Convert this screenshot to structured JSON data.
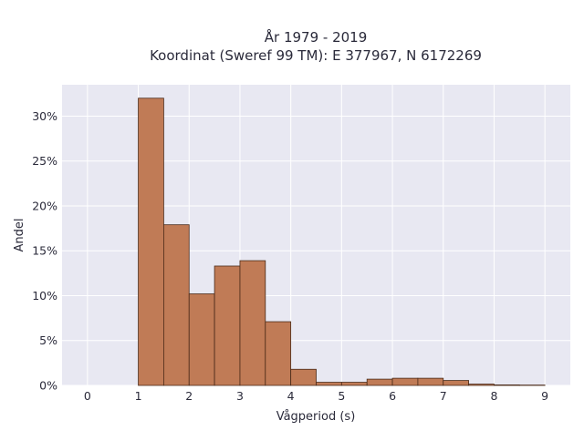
{
  "chart_data": {
    "type": "bar",
    "title_line1": "År 1979 - 2019",
    "title_line2": "Koordinat (Sweref 99 TM): E 377967, N 6172269",
    "xlabel": "Vågperiod (s)",
    "ylabel": "Andel",
    "xlim": [
      -0.5,
      9.5
    ],
    "ylim": [
      0,
      33.5
    ],
    "x_ticks": [
      0,
      1,
      2,
      3,
      4,
      5,
      6,
      7,
      8,
      9
    ],
    "y_ticks": [
      0,
      5,
      10,
      15,
      20,
      25,
      30
    ],
    "y_tick_labels": [
      "0%",
      "5%",
      "10%",
      "15%",
      "20%",
      "25%",
      "30%"
    ],
    "bin_width": 0.5,
    "bins": [
      {
        "start": 1.0,
        "value": 32.0
      },
      {
        "start": 1.5,
        "value": 17.9
      },
      {
        "start": 2.0,
        "value": 10.2
      },
      {
        "start": 2.5,
        "value": 13.3
      },
      {
        "start": 3.0,
        "value": 13.9
      },
      {
        "start": 3.5,
        "value": 7.1
      },
      {
        "start": 4.0,
        "value": 1.8
      },
      {
        "start": 4.5,
        "value": 0.35
      },
      {
        "start": 5.0,
        "value": 0.35
      },
      {
        "start": 5.5,
        "value": 0.7
      },
      {
        "start": 6.0,
        "value": 0.8
      },
      {
        "start": 6.5,
        "value": 0.8
      },
      {
        "start": 7.0,
        "value": 0.55
      },
      {
        "start": 7.5,
        "value": 0.15
      },
      {
        "start": 8.0,
        "value": 0.06
      },
      {
        "start": 8.5,
        "value": 0.04
      }
    ],
    "grid": true,
    "colors": {
      "bar_fill": "#c07b56",
      "bar_stroke": "#4a2a18",
      "plot_bg": "#e8e8f2",
      "grid": "#ffffff"
    }
  }
}
